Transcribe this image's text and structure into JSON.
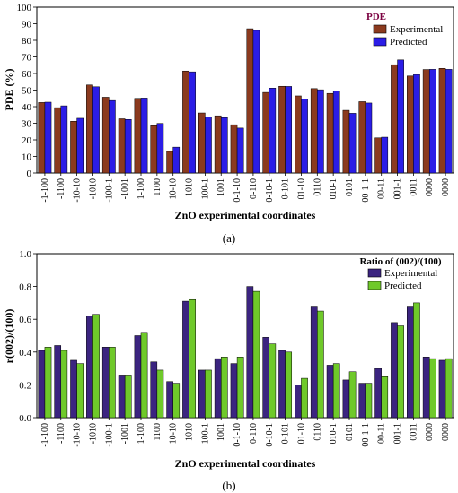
{
  "chart_data": [
    {
      "type": "bar",
      "panel_label": "(a)",
      "xlabel": "ZnO experimental coordinates",
      "ylabel": "PDE (%)",
      "ylim": [
        0,
        100
      ],
      "yticks": [
        0,
        10,
        20,
        30,
        40,
        50,
        60,
        70,
        80,
        90,
        100
      ],
      "legend_title": "PDE",
      "legend_position": "top-right",
      "grid": false,
      "categories": [
        "-1-100",
        "-1100",
        "-10-10",
        "-1010",
        "-100-1",
        "-1001",
        "1-100",
        "1100",
        "10-10",
        "1010",
        "100-1",
        "1001",
        "0-1-10",
        "0-110",
        "0-10-1",
        "0-101",
        "01-10",
        "0110",
        "010-1",
        "0101",
        "00-1-1",
        "00-11",
        "001-1",
        "0011",
        "0000",
        "0000"
      ],
      "series": [
        {
          "name": "Experimental",
          "color": "#8b3a1e",
          "values": [
            42.5,
            39.4,
            31.2,
            53.1,
            45.7,
            32.7,
            45.0,
            28.5,
            13.0,
            61.5,
            36.2,
            34.5,
            29.1,
            87.0,
            48.6,
            52.3,
            46.5,
            50.9,
            48.0,
            37.8,
            43.0,
            21.2,
            65.3,
            58.5,
            62.4,
            63.1
          ]
        },
        {
          "name": "Predicted",
          "color": "#2b1de6",
          "values": [
            42.7,
            40.5,
            33.0,
            52.0,
            43.7,
            32.3,
            45.2,
            29.9,
            15.6,
            61.0,
            33.9,
            33.4,
            27.1,
            86.0,
            51.2,
            52.2,
            44.6,
            50.2,
            49.4,
            36.0,
            42.2,
            21.6,
            68.2,
            59.4,
            62.5,
            62.5
          ]
        }
      ]
    },
    {
      "type": "bar",
      "panel_label": "(b)",
      "xlabel": "ZnO experimental coordinates",
      "ylabel": "r(002)/(100)",
      "ylim": [
        0,
        1.0
      ],
      "yticks": [
        "0.0",
        "0.2",
        "0.4",
        "0.6",
        "0.8",
        "1.0"
      ],
      "legend_title": "Ratio of (002)/(100)",
      "legend_position": "top-right",
      "grid": false,
      "categories": [
        "-1-100",
        "-1100",
        "-10-10",
        "-1010",
        "-100-1",
        "-1001",
        "1-100",
        "1100",
        "10-10",
        "1010",
        "100-1",
        "1001",
        "0-1-10",
        "0-110",
        "0-10-1",
        "0-101",
        "01-10",
        "0110",
        "010-1",
        "0101",
        "00-1-1",
        "00-11",
        "001-1",
        "0011",
        "0000",
        "0000"
      ],
      "series": [
        {
          "name": "Experimental",
          "color": "#3b2480",
          "values": [
            0.41,
            0.44,
            0.35,
            0.62,
            0.43,
            0.26,
            0.5,
            0.34,
            0.22,
            0.71,
            0.29,
            0.36,
            0.33,
            0.8,
            0.49,
            0.41,
            0.2,
            0.68,
            0.32,
            0.23,
            0.21,
            0.3,
            0.58,
            0.68,
            0.37,
            0.35
          ]
        },
        {
          "name": "Predicted",
          "color": "#6fc92a",
          "values": [
            0.43,
            0.41,
            0.33,
            0.63,
            0.43,
            0.26,
            0.52,
            0.29,
            0.21,
            0.72,
            0.29,
            0.37,
            0.37,
            0.77,
            0.45,
            0.4,
            0.24,
            0.65,
            0.33,
            0.28,
            0.21,
            0.25,
            0.56,
            0.7,
            0.36,
            0.36
          ]
        }
      ]
    }
  ]
}
